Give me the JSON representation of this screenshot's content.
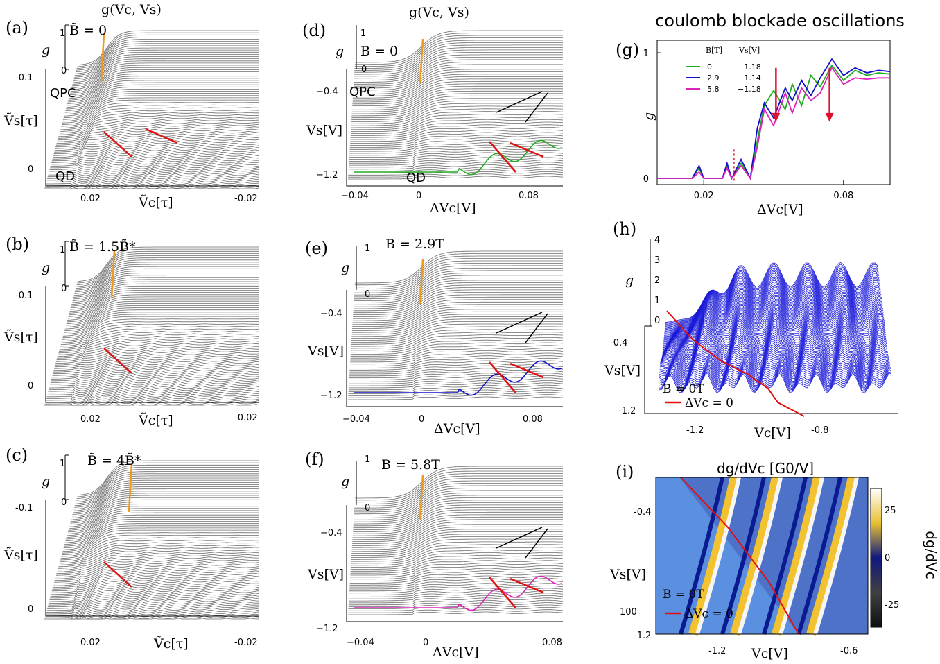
{
  "figure_title": "coulomb blockade oscillations",
  "chart_data": [
    {
      "id": "a",
      "type": "line",
      "letter": "(a)",
      "title": "g(Vc, Vs)",
      "field_label": "B̃ = 0",
      "zlabel": "g",
      "ylabel": "Ṽs[τ]",
      "xlabel": "Ṽc[τ]",
      "z_ticks": [
        "1",
        "0"
      ],
      "y_ticks": [
        "-0.1",
        "0"
      ],
      "x_ticks": [
        "0.02",
        "-0.02"
      ],
      "region_labels": [
        "QPC",
        "QD"
      ],
      "n_traces": 72,
      "field": 0
    },
    {
      "id": "b",
      "type": "line",
      "letter": "(b)",
      "title": "",
      "field_label": "B̃ = 1.5B̃*",
      "zlabel": "g",
      "ylabel": "Ṽs[τ]",
      "xlabel": "Ṽc[τ]",
      "z_ticks": [
        "1",
        "0"
      ],
      "y_ticks": [
        "-0.1",
        "0"
      ],
      "x_ticks": [
        "0.02",
        "-0.02"
      ],
      "region_labels": [],
      "n_traces": 72,
      "field": 1.5
    },
    {
      "id": "c",
      "type": "line",
      "letter": "(c)",
      "title": "",
      "field_label": "B̃ = 4B̃*",
      "zlabel": "g",
      "ylabel": "Ṽs[τ]",
      "xlabel": "Ṽc[τ]",
      "z_ticks": [
        "1",
        "0"
      ],
      "y_ticks": [
        "-0.1",
        "0"
      ],
      "x_ticks": [
        "0.02",
        "-0.02"
      ],
      "region_labels": [],
      "n_traces": 72,
      "field": 4
    },
    {
      "id": "d",
      "type": "line",
      "letter": "(d)",
      "title": "g(Vc, Vs)",
      "field_label": "B = 0",
      "zlabel": "g",
      "ylabel": "Vs[V]",
      "xlabel": "ΔVc[V]",
      "z_ticks": [
        "1",
        "0"
      ],
      "y_ticks": [
        "−0.4",
        "−1.2"
      ],
      "x_ticks": [
        "−0.04",
        "0",
        "0.08"
      ],
      "region_labels": [
        "QPC",
        "QD"
      ],
      "n_traces": 60,
      "highlight_color": "#22aa22"
    },
    {
      "id": "e",
      "type": "line",
      "letter": "(e)",
      "title": "",
      "field_label": "B = 2.9T",
      "zlabel": "g",
      "ylabel": "Vs[V]",
      "xlabel": "ΔVc[V]",
      "z_ticks": [
        "1",
        "0"
      ],
      "y_ticks": [
        "−0.4",
        "−1.2"
      ],
      "x_ticks": [
        "−0.04",
        "0",
        "0.08"
      ],
      "region_labels": [],
      "n_traces": 60,
      "highlight_color": "#1010cc"
    },
    {
      "id": "f",
      "type": "line",
      "letter": "(f)",
      "title": "",
      "field_label": "B = 5.8T",
      "zlabel": "g",
      "ylabel": "Vs[V]",
      "xlabel": "ΔVc[V]",
      "z_ticks": [
        "1",
        "0"
      ],
      "y_ticks": [
        "−0.4",
        "−1.2"
      ],
      "x_ticks": [
        "−0.04",
        "0",
        "0.08"
      ],
      "region_labels": [],
      "n_traces": 60,
      "highlight_color": "#dd22bb"
    },
    {
      "id": "g",
      "type": "line",
      "letter": "(g)",
      "xlabel": "ΔVc[V]",
      "ylabel": "g",
      "xlim": [
        0.0,
        0.1
      ],
      "ylim": [
        -0.05,
        1.1
      ],
      "x_ticks": [
        0.02,
        0.08
      ],
      "x_tick_labels": [
        "0.02",
        "0.08"
      ],
      "y_ticks": [
        0,
        1
      ],
      "y_tick_labels": [
        "0",
        "1"
      ],
      "legend_headers": [
        "B[T]",
        "Vs[V]"
      ],
      "legend_position": "top-left",
      "series": [
        {
          "name": "0",
          "vs": "−1.18",
          "color": "#22aa22",
          "x": [
            0.0,
            0.015,
            0.018,
            0.02,
            0.022,
            0.028,
            0.03,
            0.032,
            0.036,
            0.04,
            0.043,
            0.046,
            0.05,
            0.055,
            0.058,
            0.062,
            0.066,
            0.07,
            0.075,
            0.08,
            0.085,
            0.09,
            0.095,
            0.1
          ],
          "y": [
            0.0,
            0.0,
            0.08,
            0.0,
            0.0,
            0.0,
            0.09,
            0.0,
            0.12,
            0.0,
            0.3,
            0.58,
            0.7,
            0.55,
            0.75,
            0.58,
            0.82,
            0.73,
            0.9,
            0.78,
            0.86,
            0.82,
            0.84,
            0.83
          ]
        },
        {
          "name": "2.9",
          "vs": "−1.14",
          "color": "#1010cc",
          "x": [
            0.0,
            0.015,
            0.018,
            0.02,
            0.022,
            0.028,
            0.03,
            0.032,
            0.036,
            0.04,
            0.043,
            0.046,
            0.05,
            0.055,
            0.058,
            0.062,
            0.066,
            0.07,
            0.075,
            0.08,
            0.085,
            0.09,
            0.095,
            0.1
          ],
          "y": [
            0.0,
            0.0,
            0.1,
            0.0,
            0.0,
            0.0,
            0.12,
            0.0,
            0.15,
            0.0,
            0.4,
            0.6,
            0.48,
            0.72,
            0.62,
            0.78,
            0.66,
            0.8,
            0.95,
            0.82,
            0.88,
            0.84,
            0.86,
            0.85
          ]
        },
        {
          "name": "5.8",
          "vs": "−1.18",
          "color": "#dd22bb",
          "x": [
            0.0,
            0.015,
            0.018,
            0.02,
            0.022,
            0.028,
            0.03,
            0.032,
            0.036,
            0.04,
            0.043,
            0.046,
            0.05,
            0.055,
            0.058,
            0.062,
            0.066,
            0.07,
            0.075,
            0.08,
            0.085,
            0.09,
            0.095,
            0.1
          ],
          "y": [
            0.0,
            0.0,
            0.05,
            0.0,
            0.0,
            0.0,
            0.08,
            0.0,
            0.1,
            0.0,
            0.25,
            0.55,
            0.42,
            0.68,
            0.52,
            0.72,
            0.62,
            0.68,
            0.88,
            0.75,
            0.8,
            0.79,
            0.8,
            0.8
          ]
        }
      ],
      "arrows_x": [
        0.051,
        0.074
      ],
      "dashed_arrow_x": 0.033
    },
    {
      "id": "h",
      "type": "line",
      "letter": "(h)",
      "zlabel": "g",
      "z_ticks": [
        "4",
        "3",
        "2",
        "1",
        "0"
      ],
      "ylabel": "Vs[V]",
      "y_ticks": [
        "-0.4",
        "-1.2"
      ],
      "xlabel": "Vc[V]",
      "x_ticks": [
        "-1.2",
        "-0.8"
      ],
      "legend": {
        "field": "B = 0T",
        "line": "ΔVc = 0"
      },
      "trace_color": "#1a1ad8",
      "n_traces": 70
    },
    {
      "id": "i",
      "type": "heatmap",
      "letter": "(i)",
      "title": "dg/dVc [G0/V]",
      "xlabel": "Vc[V]",
      "x_ticks": [
        "-1.2",
        "-0.6"
      ],
      "ylabel": "Vs[V]",
      "y_ticks": [
        "-0.4",
        "100",
        "-1.2"
      ],
      "colorbar_label": "dg/dVc",
      "colorbar_ticks": [
        "25",
        "0",
        "-25"
      ],
      "legend": {
        "field": "B = 0T",
        "line": "ΔVc = 0"
      },
      "background_color": "#5b8fe0"
    }
  ]
}
